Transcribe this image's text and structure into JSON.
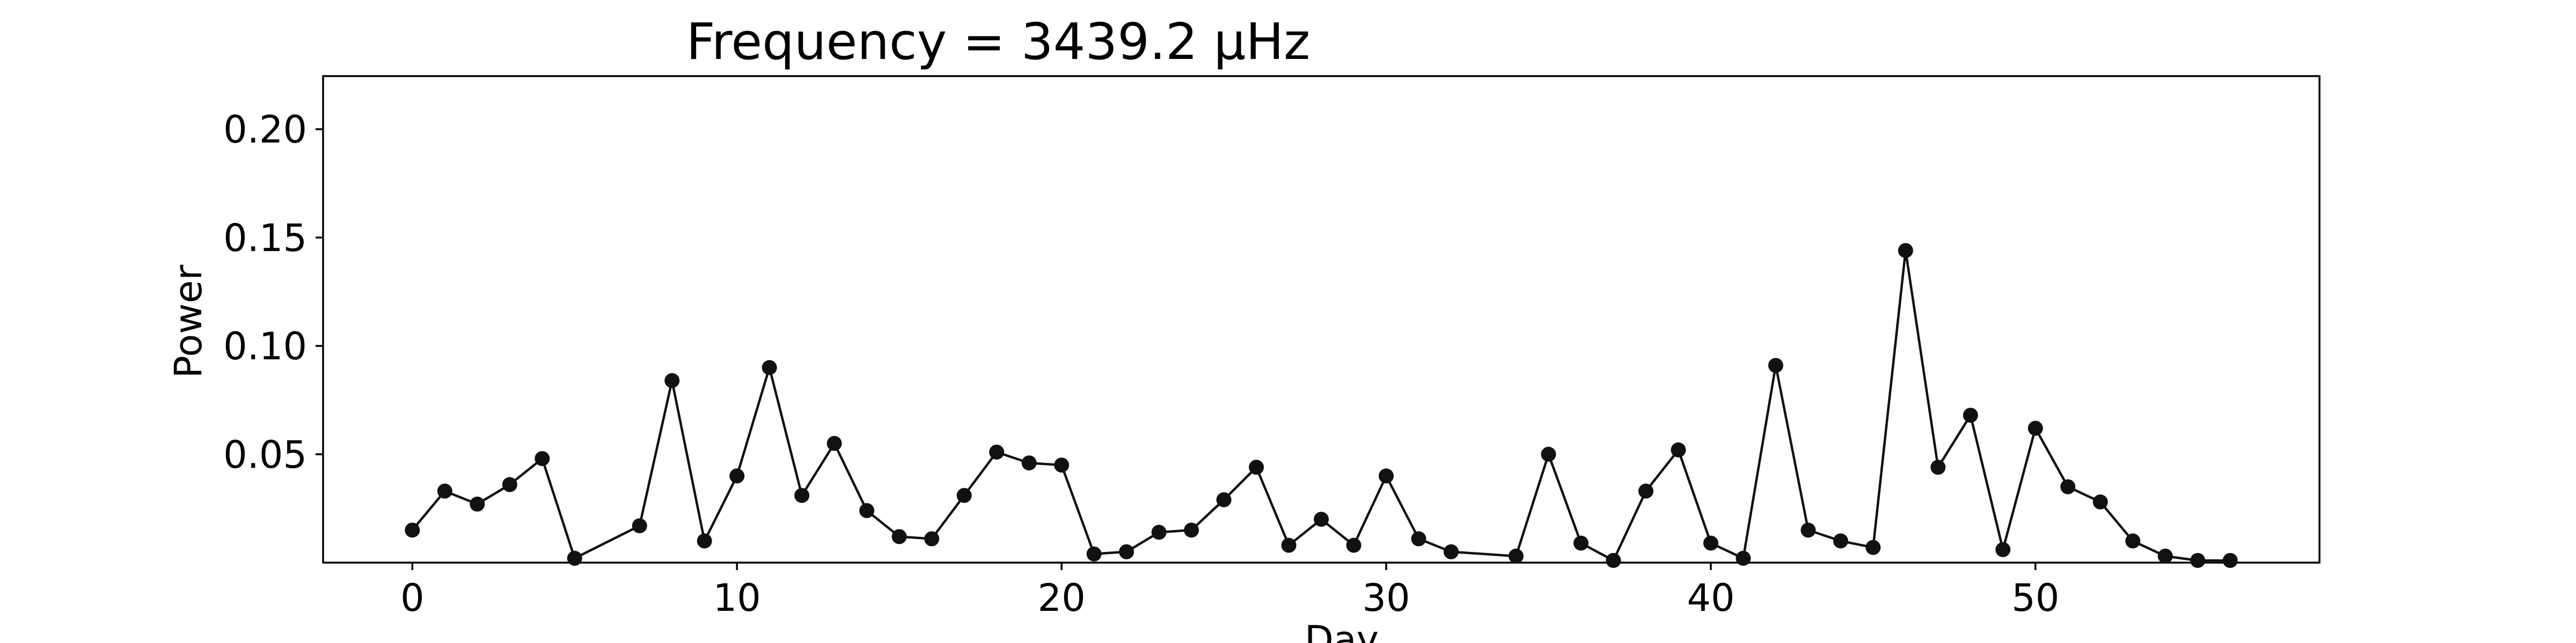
{
  "chart_data": {
    "type": "line",
    "title": "Frequency = 3439.2 μHz",
    "xlabel": "Day",
    "ylabel": "Power",
    "xlim": [
      -2.75,
      58.75
    ],
    "ylim": [
      0.0,
      0.2245
    ],
    "xticks": [
      0,
      10,
      20,
      30,
      40,
      50
    ],
    "yticks": [
      0.05,
      0.1,
      0.15,
      0.2
    ],
    "xtick_labels": [
      "0",
      "10",
      "20",
      "30",
      "40",
      "50"
    ],
    "ytick_labels": [
      "0.05",
      "0.10",
      "0.15",
      "0.20"
    ],
    "grid": false,
    "legend": "none",
    "series": [
      {
        "color": "#111111",
        "marker": "circle",
        "x": [
          0,
          1,
          2,
          3,
          4,
          5,
          7,
          8,
          9,
          10,
          11,
          12,
          13,
          14,
          15,
          16,
          17,
          18,
          19,
          20,
          21,
          22,
          23,
          24,
          25,
          26,
          27,
          28,
          29,
          30,
          31,
          32,
          34,
          35,
          36,
          37,
          38,
          39,
          40,
          41,
          42,
          43,
          44,
          45,
          46,
          47,
          48,
          49,
          50,
          51,
          52,
          53,
          54,
          55,
          56
        ],
        "y": [
          0.015,
          0.033,
          0.027,
          0.036,
          0.048,
          0.002,
          0.017,
          0.084,
          0.01,
          0.04,
          0.09,
          0.031,
          0.055,
          0.024,
          0.012,
          0.011,
          0.031,
          0.051,
          0.046,
          0.045,
          0.004,
          0.005,
          0.014,
          0.015,
          0.029,
          0.044,
          0.008,
          0.02,
          0.008,
          0.04,
          0.011,
          0.005,
          0.003,
          0.05,
          0.009,
          0.001,
          0.033,
          0.052,
          0.009,
          0.002,
          0.091,
          0.015,
          0.01,
          0.007,
          0.144,
          0.044,
          0.068,
          0.006,
          0.062,
          0.035,
          0.028,
          0.01,
          0.003,
          0.001,
          0.001
        ]
      }
    ]
  }
}
